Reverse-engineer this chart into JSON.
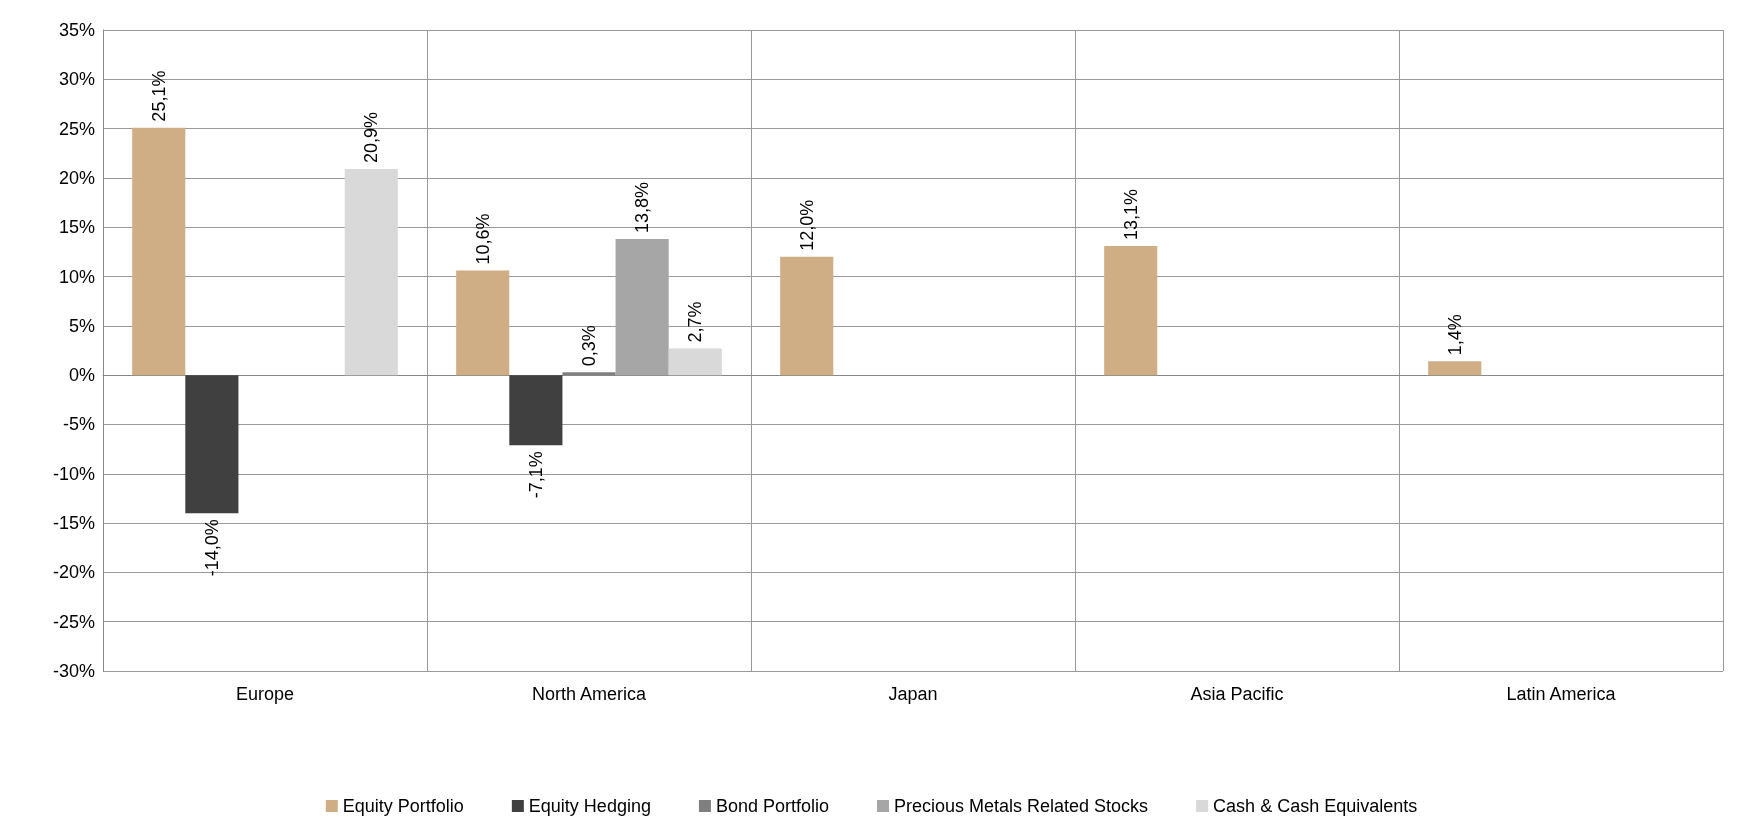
{
  "chart_data": {
    "type": "bar",
    "categories": [
      "Europe",
      "North America",
      "Japan",
      "Asia Pacific",
      "Latin America"
    ],
    "series": [
      {
        "name": "Equity Portfolio",
        "color": "#cfae86",
        "values": [
          25.1,
          10.6,
          12.0,
          13.1,
          1.4
        ],
        "value_labels": [
          "25,1%",
          "10,6%",
          "12,0%",
          "13,1%",
          "1,4%"
        ]
      },
      {
        "name": "Equity Hedging",
        "color": "#404040",
        "values": [
          -14.0,
          -7.1,
          null,
          null,
          null
        ],
        "value_labels": [
          "-14,0%",
          "-7,1%",
          null,
          null,
          null
        ]
      },
      {
        "name": "Bond Portfolio",
        "color": "#7f7f7f",
        "values": [
          null,
          0.3,
          null,
          null,
          null
        ],
        "value_labels": [
          null,
          "0,3%",
          null,
          null,
          null
        ]
      },
      {
        "name": "Precious Metals Related Stocks",
        "color": "#a6a6a6",
        "values": [
          null,
          13.8,
          null,
          null,
          null
        ],
        "value_labels": [
          null,
          "13,8%",
          null,
          null,
          null
        ]
      },
      {
        "name": "Cash & Cash Equivalents",
        "color": "#d9d9d9",
        "values": [
          20.9,
          2.7,
          null,
          null,
          null
        ],
        "value_labels": [
          "20,9%",
          "2,7%",
          null,
          null,
          null
        ]
      }
    ],
    "ylim": [
      -30,
      35
    ],
    "yticks": [
      {
        "value": -30,
        "label": "-30%"
      },
      {
        "value": -25,
        "label": "-25%"
      },
      {
        "value": -20,
        "label": "-20%"
      },
      {
        "value": -15,
        "label": "-15%"
      },
      {
        "value": -10,
        "label": "-10%"
      },
      {
        "value": -5,
        "label": "-5%"
      },
      {
        "value": 0,
        "label": "0%"
      },
      {
        "value": 5,
        "label": "5%"
      },
      {
        "value": 10,
        "label": "10%"
      },
      {
        "value": 15,
        "label": "15%"
      },
      {
        "value": 20,
        "label": "20%"
      },
      {
        "value": 25,
        "label": "25%"
      },
      {
        "value": 30,
        "label": "30%"
      },
      {
        "value": 35,
        "label": "35%"
      }
    ],
    "grid": true,
    "legend": "bottom"
  }
}
